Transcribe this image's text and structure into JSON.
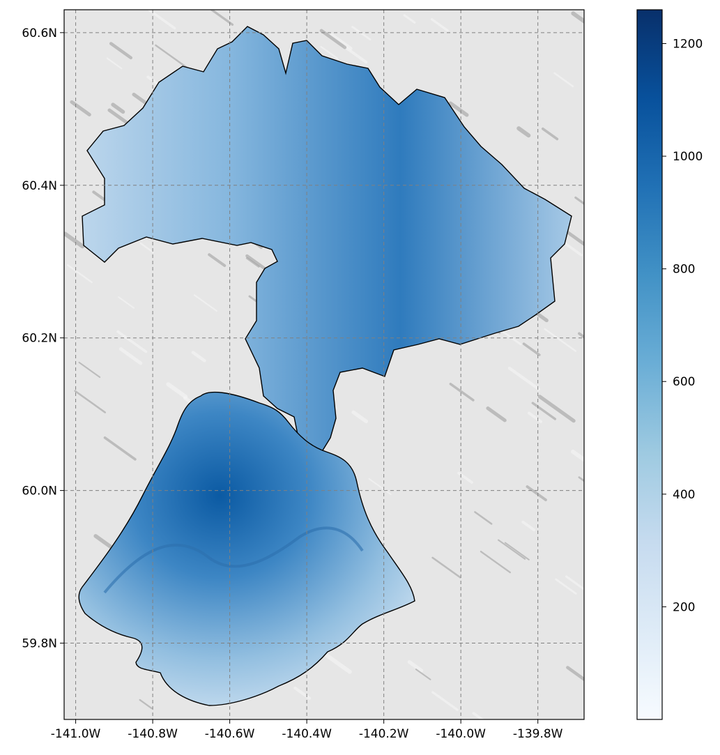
{
  "map": {
    "x_tick_labels": [
      "-141.0W",
      "-140.8W",
      "-140.6W",
      "-140.4W",
      "-140.2W",
      "-140.0W",
      "-139.8W"
    ],
    "y_tick_labels": [
      "60.6N",
      "60.4N",
      "60.2N",
      "60.0N",
      "59.8N"
    ],
    "x_ticks_deg": [
      -141.0,
      -140.8,
      -140.6,
      -140.4,
      -140.2,
      -140.0,
      -139.8
    ],
    "y_ticks_deg": [
      60.6,
      60.4,
      60.2,
      60.0,
      59.8
    ],
    "lon_range": [
      -141.03,
      -139.68
    ],
    "lat_range": [
      59.7,
      60.63
    ],
    "gridlines": true,
    "gridline_style": "dashed grey",
    "basemap": "grey hillshade relief",
    "outline_color": "#000000",
    "fill_colormap": "Blues"
  },
  "colorbar": {
    "placement": "right",
    "tick_labels": [
      "200",
      "400",
      "600",
      "800",
      "1000",
      "1200"
    ],
    "tick_values": [
      200,
      400,
      600,
      800,
      1000,
      1200
    ],
    "range": [
      0,
      1260
    ],
    "colors": [
      "#f7fbff",
      "#deebf7",
      "#c6dbef",
      "#9ecae1",
      "#6baed6",
      "#4292c6",
      "#2171b5",
      "#08519c",
      "#08306b"
    ]
  }
}
